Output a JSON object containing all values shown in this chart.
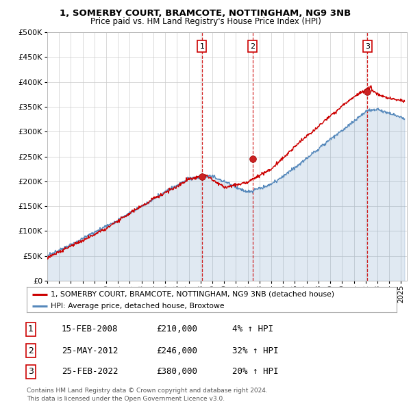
{
  "title_line1": "1, SOMERBY COURT, BRAMCOTE, NOTTINGHAM, NG9 3NB",
  "title_line2": "Price paid vs. HM Land Registry's House Price Index (HPI)",
  "ylim": [
    0,
    500000
  ],
  "yticks": [
    0,
    50000,
    100000,
    150000,
    200000,
    250000,
    300000,
    350000,
    400000,
    450000,
    500000
  ],
  "ytick_labels": [
    "£0",
    "£50K",
    "£100K",
    "£150K",
    "£200K",
    "£250K",
    "£300K",
    "£350K",
    "£400K",
    "£450K",
    "£500K"
  ],
  "xlim_start": 1995.0,
  "xlim_end": 2025.5,
  "xtick_years": [
    1995,
    1996,
    1997,
    1998,
    1999,
    2000,
    2001,
    2002,
    2003,
    2004,
    2005,
    2006,
    2007,
    2008,
    2009,
    2010,
    2011,
    2012,
    2013,
    2014,
    2015,
    2016,
    2017,
    2018,
    2019,
    2020,
    2021,
    2022,
    2023,
    2024,
    2025
  ],
  "sale_dates": [
    2008.12,
    2012.4,
    2022.15
  ],
  "sale_prices": [
    210000,
    246000,
    380000
  ],
  "sale_labels": [
    "1",
    "2",
    "3"
  ],
  "vline_color": "#cc0000",
  "red_line_color": "#cc0000",
  "blue_line_color": "#5588bb",
  "background_color": "#ffffff",
  "grid_color": "#cccccc",
  "legend_label_red": "1, SOMERBY COURT, BRAMCOTE, NOTTINGHAM, NG9 3NB (detached house)",
  "legend_label_blue": "HPI: Average price, detached house, Broxtowe",
  "table_rows": [
    [
      "1",
      "15-FEB-2008",
      "£210,000",
      "4% ↑ HPI"
    ],
    [
      "2",
      "25-MAY-2012",
      "£246,000",
      "32% ↑ HPI"
    ],
    [
      "3",
      "25-FEB-2022",
      "£380,000",
      "20% ↑ HPI"
    ]
  ],
  "footer_text": "Contains HM Land Registry data © Crown copyright and database right 2024.\nThis data is licensed under the Open Government Licence v3.0."
}
